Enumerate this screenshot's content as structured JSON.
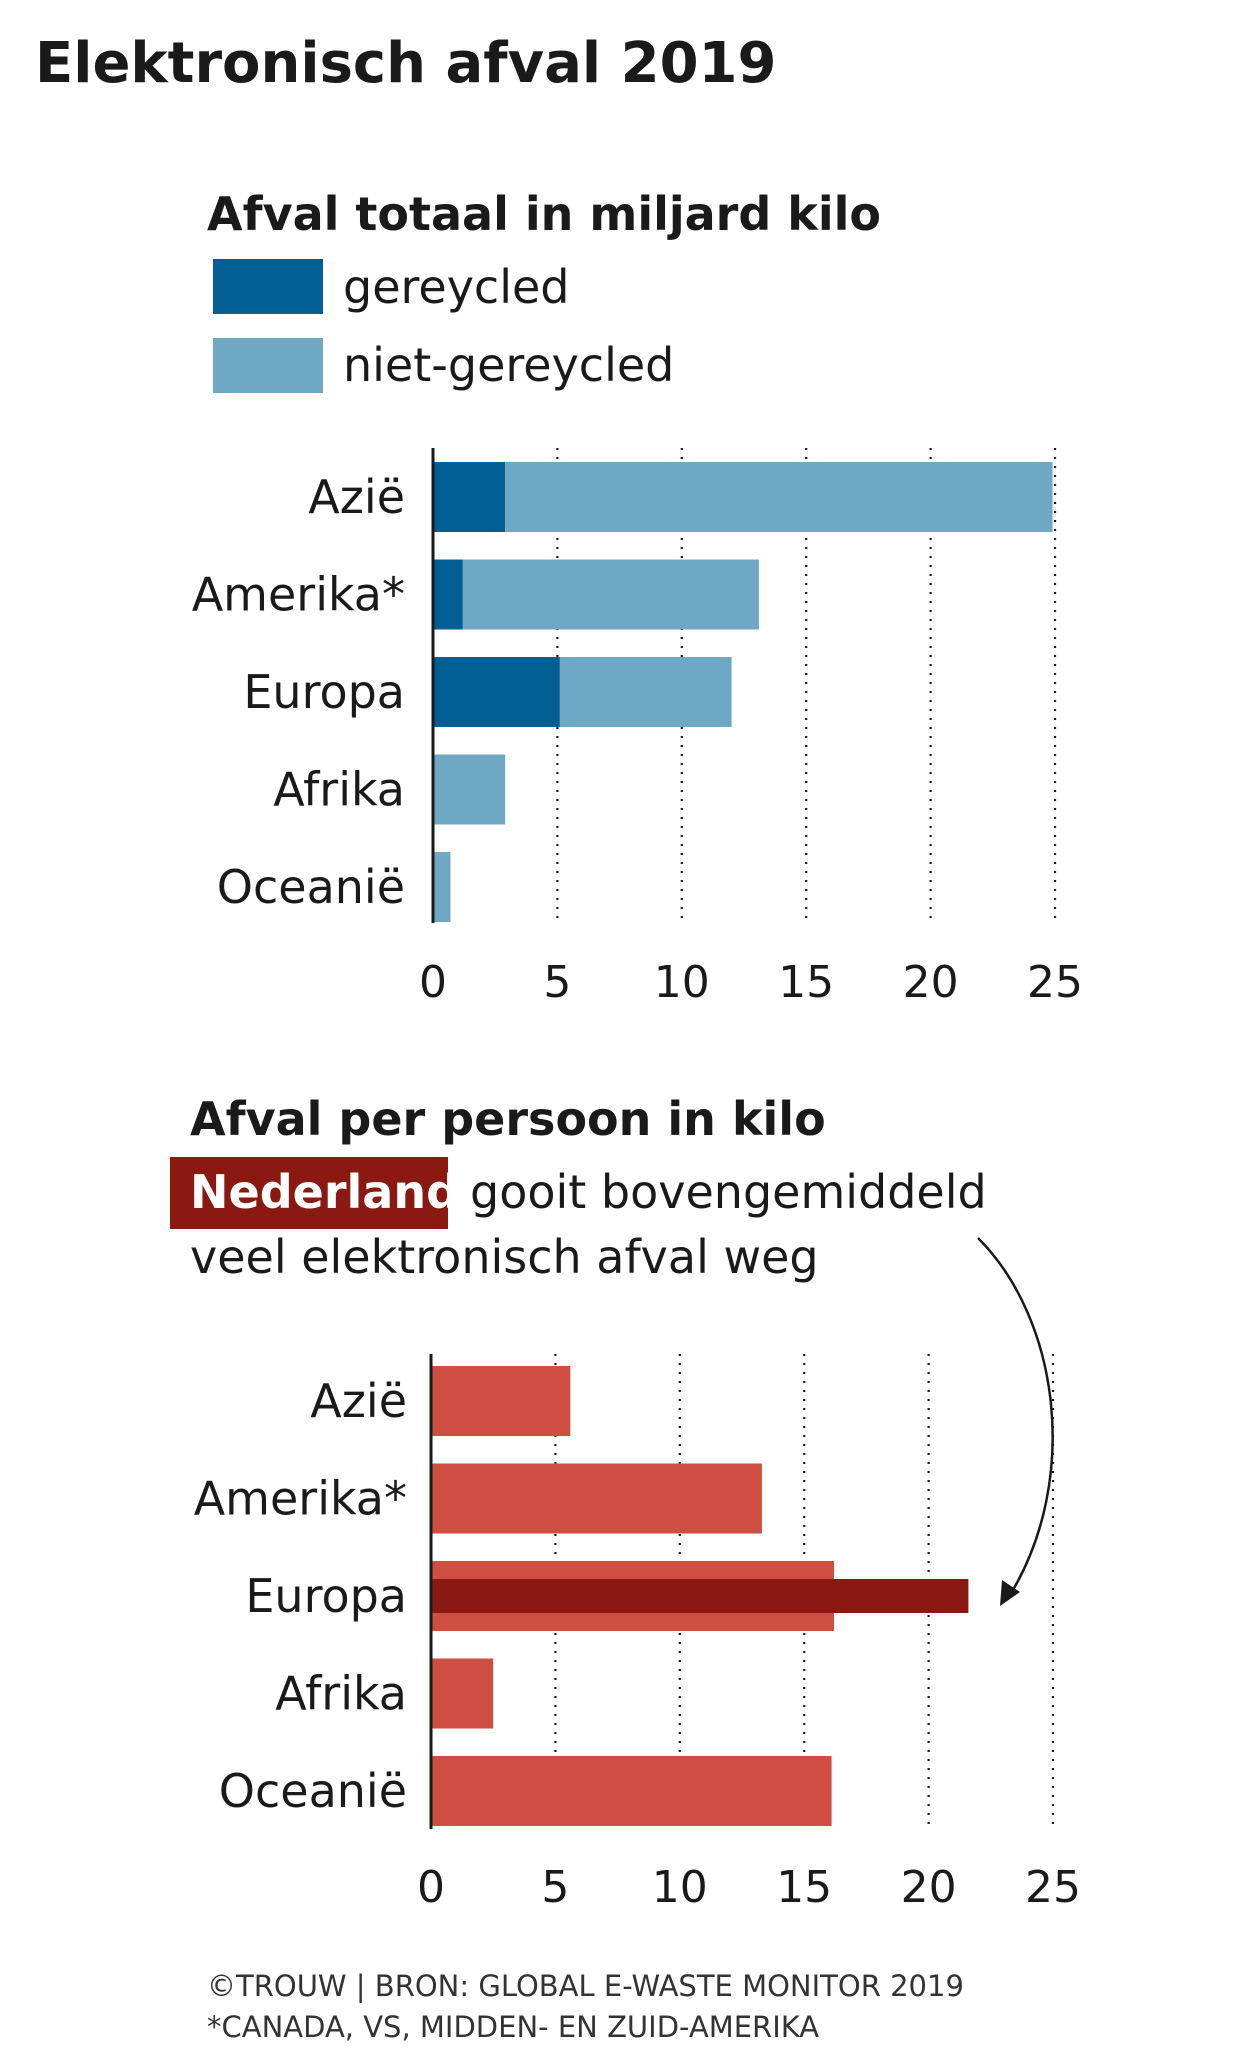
{
  "title": "Elektronisch afval 2019",
  "colors": {
    "recycled": "#015f93",
    "not_recycled": "#6ea8c4",
    "per_person": "#ce4f41",
    "netherlands": "#8a1912"
  },
  "chart_data": [
    {
      "type": "bar",
      "orientation": "horizontal",
      "stacked": true,
      "title": "Afval totaal in miljard kilo",
      "categories": [
        "Azië",
        "Amerika*",
        "Europa",
        "Afrika",
        "Oceanië"
      ],
      "series": [
        {
          "name": "gereycled",
          "values": [
            2.9,
            1.2,
            5.1,
            0.0,
            0.0
          ]
        },
        {
          "name": "niet-gereycled",
          "values": [
            22.0,
            11.9,
            6.9,
            2.9,
            0.7
          ]
        }
      ],
      "xlim": [
        0,
        25
      ],
      "xticks": [
        "0",
        "5",
        "10",
        "15",
        "20",
        "25"
      ],
      "grid": "vertical-dotted",
      "legend": "top-left"
    },
    {
      "type": "bar",
      "orientation": "horizontal",
      "title": "Afval per persoon in kilo",
      "categories": [
        "Azië",
        "Amerika*",
        "Europa",
        "Afrika",
        "Oceanië"
      ],
      "values": [
        5.6,
        13.3,
        16.2,
        2.5,
        16.1
      ],
      "highlight": {
        "label": "Nederland",
        "category": "Europa",
        "value": 21.6
      },
      "annotation": {
        "highlight": "Nederland",
        "line1": "gooit bovengemiddeld",
        "line2": "veel elektronisch afval weg"
      },
      "xlim": [
        0,
        25
      ],
      "xticks": [
        "0",
        "5",
        "10",
        "15",
        "20",
        "25"
      ],
      "grid": "vertical-dotted"
    }
  ],
  "footer": {
    "source": "©TROUW | BRON: GLOBAL E-WASTE MONITOR 2019",
    "note": "*CANADA, VS, MIDDEN- EN ZUID-AMERIKA"
  }
}
